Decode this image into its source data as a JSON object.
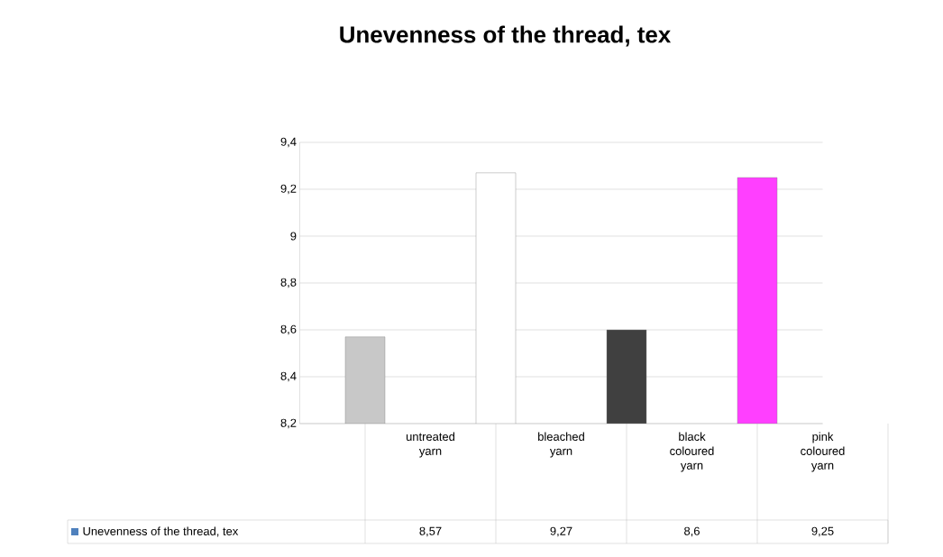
{
  "chart_data": {
    "type": "bar",
    "title": "Unevenness of the thread, tex",
    "categories": [
      "untreated yarn",
      "bleached yarn",
      "black coloured yarn",
      "pink coloured yarn"
    ],
    "series": [
      {
        "name": "Unevenness of the thread, tex",
        "color": "#4f81bd",
        "colors": [
          "#c8c8c8",
          "#ffffff",
          "#404040",
          "#ff3fff"
        ],
        "values": [
          8.57,
          9.27,
          8.6,
          9.25
        ],
        "value_labels": [
          "8,57",
          "9,27",
          "8,6",
          "9,25"
        ]
      }
    ],
    "ylim": [
      8.2,
      9.4
    ],
    "yticks": [
      {
        "value": 8.2,
        "label": "8,2"
      },
      {
        "value": 8.4,
        "label": "8,4"
      },
      {
        "value": 8.6,
        "label": "8,6"
      },
      {
        "value": 8.8,
        "label": "8,8"
      },
      9,
      {
        "value": 9.2,
        "label": "9,2"
      },
      {
        "value": 9.4,
        "label": "9,4"
      }
    ],
    "grid": "y",
    "legend": "bottom"
  }
}
